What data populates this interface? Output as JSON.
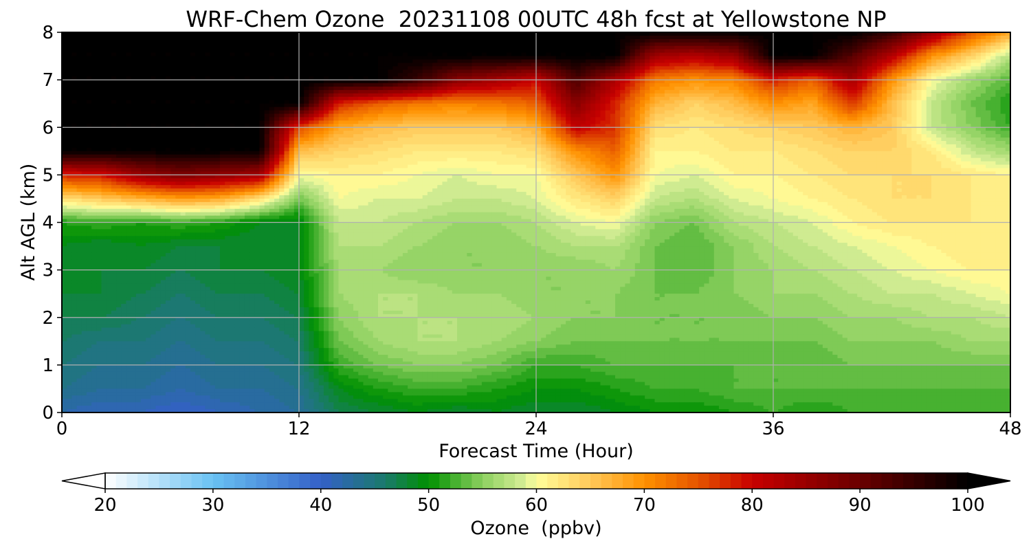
{
  "chart_data": {
    "type": "heatmap",
    "title": "WRF-Chem Ozone  20231108 00UTC 48h fcst at Yellowstone NP",
    "xlabel": "Forecast Time (Hour)",
    "ylabel": "Alt AGL (km)",
    "xlim": [
      0,
      48
    ],
    "ylim": [
      0,
      8
    ],
    "x_ticks": [
      0,
      12,
      24,
      36,
      48
    ],
    "y_ticks": [
      0,
      1,
      2,
      3,
      4,
      5,
      6,
      7,
      8
    ],
    "grid": true,
    "colorbar": {
      "label": "Ozone  (ppbv)",
      "min": 20,
      "max": 100,
      "ticks": [
        20,
        30,
        40,
        50,
        60,
        70,
        80,
        90,
        100
      ],
      "extend": "both",
      "stops": [
        {
          "value": 20,
          "color": "#ffffff"
        },
        {
          "value": 30,
          "color": "#69c2f3"
        },
        {
          "value": 40,
          "color": "#3460c8"
        },
        {
          "value": 46,
          "color": "#1a7a6a"
        },
        {
          "value": 50,
          "color": "#009100"
        },
        {
          "value": 55,
          "color": "#8dd060"
        },
        {
          "value": 59,
          "color": "#d8ef98"
        },
        {
          "value": 60,
          "color": "#fffe9a"
        },
        {
          "value": 65,
          "color": "#ffc95a"
        },
        {
          "value": 70,
          "color": "#ff9100"
        },
        {
          "value": 75,
          "color": "#e55400"
        },
        {
          "value": 80,
          "color": "#c80000"
        },
        {
          "value": 90,
          "color": "#6a0000"
        },
        {
          "value": 100,
          "color": "#000000"
        }
      ]
    },
    "x_hours": [
      0,
      2,
      4,
      6,
      8,
      10,
      12,
      14,
      16,
      18,
      20,
      22,
      24,
      26,
      28,
      30,
      32,
      34,
      36,
      38,
      40,
      42,
      44,
      46,
      48
    ],
    "alt_km": [
      0,
      0.5,
      1,
      1.5,
      2,
      2.5,
      3,
      3.5,
      4,
      4.5,
      5,
      5.5,
      6,
      6.5,
      7,
      7.5,
      8
    ],
    "ozone_ppbv": [
      [
        42,
        41,
        41,
        40,
        41,
        42,
        43,
        47,
        48,
        49,
        48,
        49,
        48,
        48,
        49,
        50,
        50,
        51,
        52,
        51,
        52,
        52,
        52,
        52,
        52
      ],
      [
        44,
        43,
        43,
        42,
        43,
        43,
        44,
        49,
        51,
        52,
        52,
        51,
        50,
        50,
        51,
        52,
        52,
        53,
        53,
        53,
        53,
        53,
        53,
        53,
        53
      ],
      [
        45,
        44,
        44,
        43,
        44,
        44,
        45,
        52,
        54,
        55,
        55,
        54,
        52,
        52,
        53,
        53,
        53,
        53,
        53,
        53,
        54,
        54,
        54,
        54,
        54
      ],
      [
        46,
        45,
        45,
        44,
        45,
        45,
        46,
        54,
        56,
        57,
        57,
        56,
        55,
        54,
        54,
        54,
        54,
        54,
        54,
        54,
        55,
        55,
        55,
        56,
        56
      ],
      [
        47,
        47,
        46,
        45,
        46,
        46,
        47,
        55,
        57,
        57,
        57,
        57,
        56,
        55,
        55,
        54,
        54,
        54,
        55,
        55,
        56,
        56,
        57,
        57,
        58
      ],
      [
        48,
        48,
        47,
        46,
        47,
        47,
        48,
        56,
        57,
        57,
        56,
        56,
        55,
        55,
        55,
        54,
        54,
        55,
        56,
        56,
        57,
        58,
        58,
        59,
        60
      ],
      [
        49,
        48,
        48,
        47,
        48,
        48,
        49,
        56,
        56,
        55,
        55,
        55,
        55,
        55,
        56,
        54,
        53,
        55,
        56,
        57,
        58,
        59,
        60,
        61,
        61
      ],
      [
        49,
        48,
        49,
        48,
        48,
        48,
        49,
        57,
        57,
        56,
        55,
        55,
        56,
        57,
        57,
        54,
        53,
        55,
        57,
        58,
        59,
        60,
        61,
        62,
        61
      ],
      [
        51,
        52,
        51,
        52,
        51,
        49,
        49,
        58,
        58,
        57,
        56,
        56,
        57,
        59,
        60,
        55,
        54,
        57,
        58,
        59,
        61,
        62,
        62,
        62,
        61
      ],
      [
        63,
        65,
        67,
        69,
        68,
        63,
        54,
        60,
        59,
        59,
        58,
        58,
        59,
        62,
        64,
        58,
        57,
        59,
        60,
        61,
        62,
        63,
        63,
        62,
        61
      ],
      [
        78,
        79,
        85,
        88,
        86,
        84,
        60,
        61,
        61,
        60,
        59,
        60,
        60,
        65,
        70,
        60,
        59,
        61,
        61,
        62,
        63,
        63,
        63,
        62,
        61
      ],
      [
        100,
        100,
        100,
        100,
        100,
        100,
        66,
        64,
        63,
        62,
        62,
        62,
        63,
        70,
        74,
        61,
        61,
        62,
        62,
        63,
        64,
        64,
        62,
        58,
        56
      ],
      [
        100,
        100,
        100,
        100,
        100,
        100,
        76,
        68,
        66,
        65,
        65,
        65,
        67,
        81,
        77,
        63,
        62,
        63,
        64,
        65,
        67,
        65,
        58,
        55,
        52
      ],
      [
        100,
        100,
        100,
        100,
        100,
        100,
        100,
        78,
        74,
        72,
        71,
        72,
        74,
        87,
        78,
        67,
        64,
        66,
        70,
        68,
        77,
        66,
        58,
        54,
        51
      ],
      [
        100,
        100,
        100,
        100,
        100,
        100,
        100,
        100,
        100,
        95,
        87,
        84,
        80,
        93,
        83,
        72,
        70,
        71,
        78,
        74,
        84,
        70,
        60,
        56,
        53
      ],
      [
        100,
        100,
        100,
        100,
        100,
        100,
        100,
        100,
        100,
        100,
        100,
        100,
        100,
        100,
        100,
        84,
        82,
        85,
        100,
        100,
        92,
        82,
        70,
        64,
        57
      ],
      [
        100,
        100,
        100,
        100,
        100,
        100,
        100,
        100,
        100,
        100,
        100,
        100,
        100,
        100,
        100,
        100,
        100,
        100,
        100,
        100,
        100,
        95,
        85,
        75,
        68
      ]
    ]
  }
}
